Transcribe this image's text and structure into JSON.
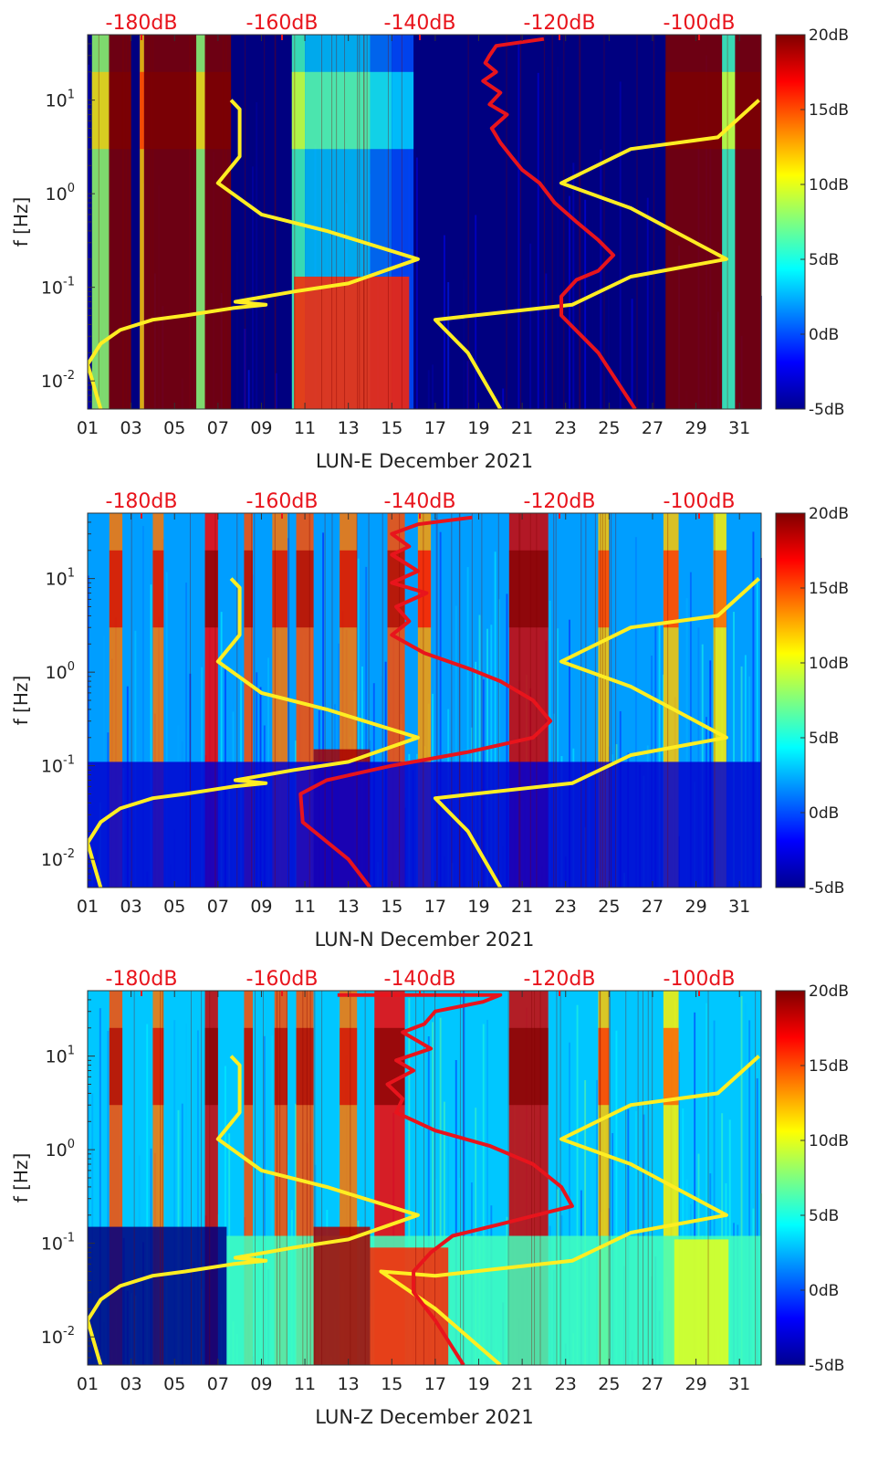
{
  "chart_data": [
    {
      "type": "heatmap",
      "title": "",
      "station": "LUN-E",
      "xlabel": "LUN-E December 2021",
      "ylabel": "f [Hz]",
      "x_ticks": [
        "01",
        "03",
        "05",
        "07",
        "09",
        "11",
        "13",
        "15",
        "17",
        "19",
        "21",
        "23",
        "25",
        "27",
        "29",
        "31"
      ],
      "y_ticks": [
        "10^-2",
        "10^-1",
        "10^0",
        "10^1"
      ],
      "xlim": [
        1,
        32
      ],
      "ylim_hz": [
        0.005,
        50
      ],
      "top_axis": {
        "labels": [
          "-180dB",
          "-160dB",
          "-140dB",
          "-120dB",
          "-100dB"
        ],
        "color": "#e8141c"
      },
      "colorbar": {
        "labels": [
          "20dB",
          "15dB",
          "10dB",
          "5dB",
          "0dB",
          "-5dB"
        ],
        "range_db": [
          -5,
          20
        ]
      },
      "background_level_db": -5,
      "bands": [
        {
          "day_start": 1.2,
          "day_end": 2.0,
          "level": 8
        },
        {
          "day_start": 2.0,
          "day_end": 3.0,
          "level": 20
        },
        {
          "day_start": 3.4,
          "day_end": 3.6,
          "level": 12
        },
        {
          "day_start": 3.6,
          "day_end": 6.0,
          "level": 20
        },
        {
          "day_start": 6.0,
          "day_end": 6.4,
          "level": 8
        },
        {
          "day_start": 6.4,
          "day_end": 7.6,
          "level": 20
        },
        {
          "day_start": 10.4,
          "day_end": 11.0,
          "level": 6
        },
        {
          "day_start": 11.0,
          "day_end": 14.0,
          "level": 3
        },
        {
          "day_start": 14.0,
          "day_end": 15.0,
          "level": 1
        },
        {
          "day_start": 15.0,
          "day_end": 16.0,
          "level": 0
        },
        {
          "day_start": 27.6,
          "day_end": 30.2,
          "level": 20
        },
        {
          "day_start": 30.2,
          "day_end": 30.8,
          "level": 6
        },
        {
          "day_start": 30.8,
          "day_end": 32.0,
          "level": 20
        }
      ],
      "low_freq_patches": [
        {
          "day_start": 10.5,
          "day_end": 15.8,
          "f_top": 0.13,
          "level": 16
        }
      ],
      "series": [
        {
          "name": "noise-model-yellow",
          "color": "#ffee22",
          "points": [
            [
              7.6,
              10
            ],
            [
              8.0,
              8
            ],
            [
              8.0,
              2.5
            ],
            [
              7.0,
              1.3
            ],
            [
              9.0,
              0.6
            ],
            [
              12.0,
              0.4
            ],
            [
              16.2,
              0.2
            ],
            [
              13.0,
              0.11
            ],
            [
              10.5,
              0.09
            ],
            [
              7.8,
              0.07
            ],
            [
              9.2,
              0.065
            ],
            [
              7.7,
              0.06
            ],
            [
              5.5,
              0.05
            ],
            [
              4.0,
              0.045
            ],
            [
              2.5,
              0.035
            ],
            [
              1.6,
              0.025
            ],
            [
              1.0,
              0.015
            ],
            [
              1.6,
              0.005
            ]
          ]
        },
        {
          "name": "noise-model-yellow-right",
          "color": "#ffee22",
          "points": [
            [
              31.9,
              10
            ],
            [
              30.0,
              4
            ],
            [
              26.0,
              3
            ],
            [
              22.8,
              1.3
            ],
            [
              26.0,
              0.7
            ],
            [
              30.4,
              0.2
            ],
            [
              26.0,
              0.13
            ],
            [
              23.3,
              0.065
            ],
            [
              17.0,
              0.045
            ],
            [
              18.5,
              0.02
            ],
            [
              20.0,
              0.005
            ]
          ]
        },
        {
          "name": "median-psd-red",
          "color": "#e8141c",
          "points": [
            [
              22.0,
              45
            ],
            [
              19.8,
              38
            ],
            [
              19.5,
              30
            ],
            [
              19.3,
              25
            ],
            [
              19.8,
              20
            ],
            [
              19.2,
              16
            ],
            [
              20.0,
              12
            ],
            [
              19.5,
              9
            ],
            [
              20.3,
              7
            ],
            [
              19.6,
              5
            ],
            [
              20.0,
              3.5
            ],
            [
              20.5,
              2.5
            ],
            [
              21.0,
              1.8
            ],
            [
              21.8,
              1.3
            ],
            [
              22.5,
              0.8
            ],
            [
              23.5,
              0.5
            ],
            [
              24.5,
              0.32
            ],
            [
              25.2,
              0.22
            ],
            [
              24.5,
              0.15
            ],
            [
              23.5,
              0.12
            ],
            [
              22.8,
              0.08
            ],
            [
              22.8,
              0.05
            ],
            [
              24.5,
              0.02
            ],
            [
              26.2,
              0.005
            ]
          ]
        }
      ]
    },
    {
      "type": "heatmap",
      "title": "",
      "station": "LUN-N",
      "xlabel": "LUN-N December 2021",
      "ylabel": "f [Hz]",
      "x_ticks": [
        "01",
        "03",
        "05",
        "07",
        "09",
        "11",
        "13",
        "15",
        "17",
        "19",
        "21",
        "23",
        "25",
        "27",
        "29",
        "31"
      ],
      "y_ticks": [
        "10^-2",
        "10^-1",
        "10^0",
        "10^1"
      ],
      "xlim": [
        1,
        32
      ],
      "ylim_hz": [
        0.005,
        50
      ],
      "top_axis": {
        "labels": [
          "-180dB",
          "-160dB",
          "-140dB",
          "-120dB",
          "-100dB"
        ],
        "color": "#e8141c"
      },
      "colorbar": {
        "labels": [
          "20dB",
          "15dB",
          "10dB",
          "5dB",
          "0dB",
          "-5dB"
        ],
        "range_db": [
          -5,
          20
        ]
      },
      "background_level_db": 2,
      "bands": [
        {
          "day_start": 2.0,
          "day_end": 2.6,
          "level": 14
        },
        {
          "day_start": 4.0,
          "day_end": 4.5,
          "level": 14
        },
        {
          "day_start": 6.4,
          "day_end": 7.0,
          "level": 17
        },
        {
          "day_start": 8.2,
          "day_end": 8.6,
          "level": 15
        },
        {
          "day_start": 9.5,
          "day_end": 10.2,
          "level": 14
        },
        {
          "day_start": 10.6,
          "day_end": 11.4,
          "level": 15
        },
        {
          "day_start": 12.6,
          "day_end": 13.4,
          "level": 14
        },
        {
          "day_start": 14.8,
          "day_end": 15.6,
          "level": 15
        },
        {
          "day_start": 16.2,
          "day_end": 16.8,
          "level": 13
        },
        {
          "day_start": 20.4,
          "day_end": 22.2,
          "level": 18
        },
        {
          "day_start": 24.5,
          "day_end": 25.0,
          "level": 12
        },
        {
          "day_start": 27.5,
          "day_end": 28.2,
          "level": 12
        },
        {
          "day_start": 29.8,
          "day_end": 30.4,
          "level": 11
        }
      ],
      "low_freq_patches": [
        {
          "day_start": 11.4,
          "day_end": 14.0,
          "f_top": 0.15,
          "level": 19
        },
        {
          "day_start": 1.0,
          "day_end": 32.0,
          "f_top": 0.11,
          "level": -3
        }
      ],
      "series": [
        {
          "name": "noise-model-yellow",
          "color": "#ffee22",
          "points": [
            [
              7.6,
              10
            ],
            [
              8.0,
              8
            ],
            [
              8.0,
              2.5
            ],
            [
              7.0,
              1.3
            ],
            [
              9.0,
              0.6
            ],
            [
              12.0,
              0.4
            ],
            [
              16.2,
              0.2
            ],
            [
              13.0,
              0.11
            ],
            [
              10.5,
              0.09
            ],
            [
              7.8,
              0.07
            ],
            [
              9.2,
              0.065
            ],
            [
              7.7,
              0.06
            ],
            [
              5.5,
              0.05
            ],
            [
              4.0,
              0.045
            ],
            [
              2.5,
              0.035
            ],
            [
              1.6,
              0.025
            ],
            [
              1.0,
              0.015
            ],
            [
              1.6,
              0.005
            ]
          ]
        },
        {
          "name": "noise-model-yellow-right",
          "color": "#ffee22",
          "points": [
            [
              31.9,
              10
            ],
            [
              30.0,
              4
            ],
            [
              26.0,
              3
            ],
            [
              22.8,
              1.3
            ],
            [
              26.0,
              0.7
            ],
            [
              30.4,
              0.2
            ],
            [
              26.0,
              0.13
            ],
            [
              23.3,
              0.065
            ],
            [
              17.0,
              0.045
            ],
            [
              18.5,
              0.02
            ],
            [
              20.0,
              0.005
            ]
          ]
        },
        {
          "name": "median-psd-red",
          "color": "#e8141c",
          "points": [
            [
              18.7,
              45
            ],
            [
              16.2,
              38
            ],
            [
              15.0,
              30
            ],
            [
              15.8,
              22
            ],
            [
              15.0,
              18
            ],
            [
              16.2,
              12
            ],
            [
              15.0,
              9
            ],
            [
              16.6,
              7
            ],
            [
              15.2,
              5
            ],
            [
              15.8,
              3.5
            ],
            [
              15.0,
              2.5
            ],
            [
              16.5,
              1.6
            ],
            [
              18.5,
              1.1
            ],
            [
              20.0,
              0.8
            ],
            [
              21.5,
              0.5
            ],
            [
              22.3,
              0.3
            ],
            [
              21.5,
              0.2
            ],
            [
              18.5,
              0.14
            ],
            [
              15.0,
              0.1
            ],
            [
              12.0,
              0.07
            ],
            [
              10.8,
              0.05
            ],
            [
              10.9,
              0.025
            ],
            [
              13.0,
              0.01
            ],
            [
              14.0,
              0.005
            ]
          ]
        }
      ]
    },
    {
      "type": "heatmap",
      "title": "",
      "station": "LUN-Z",
      "xlabel": "LUN-Z December 2021",
      "ylabel": "f [Hz]",
      "x_ticks": [
        "01",
        "03",
        "05",
        "07",
        "09",
        "11",
        "13",
        "15",
        "17",
        "19",
        "21",
        "23",
        "25",
        "27",
        "29",
        "31"
      ],
      "y_ticks": [
        "10^-2",
        "10^-1",
        "10^0",
        "10^1"
      ],
      "xlim": [
        1,
        32
      ],
      "ylim_hz": [
        0.005,
        50
      ],
      "top_axis": {
        "labels": [
          "-180dB",
          "-160dB",
          "-140dB",
          "-120dB",
          "-100dB"
        ],
        "color": "#e8141c"
      },
      "colorbar": {
        "labels": [
          "20dB",
          "15dB",
          "10dB",
          "5dB",
          "0dB",
          "-5dB"
        ],
        "range_db": [
          -5,
          20
        ]
      },
      "background_level_db": 3,
      "bands": [
        {
          "day_start": 2.0,
          "day_end": 2.6,
          "level": 15
        },
        {
          "day_start": 4.0,
          "day_end": 4.5,
          "level": 14
        },
        {
          "day_start": 6.4,
          "day_end": 7.0,
          "level": 18
        },
        {
          "day_start": 8.2,
          "day_end": 8.6,
          "level": 15
        },
        {
          "day_start": 9.6,
          "day_end": 10.2,
          "level": 15
        },
        {
          "day_start": 10.6,
          "day_end": 11.4,
          "level": 15
        },
        {
          "day_start": 12.6,
          "day_end": 13.4,
          "level": 14
        },
        {
          "day_start": 14.2,
          "day_end": 15.6,
          "level": 17
        },
        {
          "day_start": 20.4,
          "day_end": 22.2,
          "level": 18
        },
        {
          "day_start": 24.5,
          "day_end": 25.0,
          "level": 12
        },
        {
          "day_start": 27.5,
          "day_end": 28.2,
          "level": 11
        }
      ],
      "low_freq_patches": [
        {
          "day_start": 1.0,
          "day_end": 7.4,
          "f_top": 0.15,
          "level": -5
        },
        {
          "day_start": 7.4,
          "day_end": 32.0,
          "f_top": 0.12,
          "level": 6
        },
        {
          "day_start": 14.0,
          "day_end": 17.6,
          "f_top": 0.09,
          "level": 16
        },
        {
          "day_start": 11.4,
          "day_end": 14.0,
          "f_top": 0.15,
          "level": 19
        },
        {
          "day_start": 28.0,
          "day_end": 30.5,
          "f_top": 0.11,
          "level": 10
        }
      ],
      "series": [
        {
          "name": "noise-model-yellow",
          "color": "#ffee22",
          "points": [
            [
              7.6,
              10
            ],
            [
              8.0,
              8
            ],
            [
              8.0,
              2.5
            ],
            [
              7.0,
              1.3
            ],
            [
              9.0,
              0.6
            ],
            [
              12.0,
              0.4
            ],
            [
              16.2,
              0.2
            ],
            [
              13.0,
              0.11
            ],
            [
              10.5,
              0.09
            ],
            [
              7.8,
              0.07
            ],
            [
              9.2,
              0.065
            ],
            [
              7.7,
              0.06
            ],
            [
              5.5,
              0.05
            ],
            [
              4.0,
              0.045
            ],
            [
              2.5,
              0.035
            ],
            [
              1.6,
              0.025
            ],
            [
              1.0,
              0.015
            ],
            [
              1.6,
              0.005
            ]
          ]
        },
        {
          "name": "noise-model-yellow-right",
          "color": "#ffee22",
          "points": [
            [
              31.9,
              10
            ],
            [
              30.0,
              4
            ],
            [
              26.0,
              3
            ],
            [
              22.8,
              1.3
            ],
            [
              26.0,
              0.7
            ],
            [
              30.4,
              0.2
            ],
            [
              26.0,
              0.13
            ],
            [
              23.3,
              0.065
            ],
            [
              17.0,
              0.045
            ],
            [
              14.5,
              0.05
            ],
            [
              17.0,
              0.02
            ],
            [
              20.0,
              0.005
            ]
          ]
        },
        {
          "name": "median-psd-red",
          "color": "#e8141c",
          "points": [
            [
              12.5,
              45
            ],
            [
              20.0,
              45
            ],
            [
              19.2,
              38
            ],
            [
              17.0,
              30
            ],
            [
              16.5,
              22
            ],
            [
              15.5,
              18
            ],
            [
              16.8,
              12
            ],
            [
              15.2,
              9
            ],
            [
              16.0,
              7
            ],
            [
              14.8,
              5
            ],
            [
              15.5,
              3.5
            ],
            [
              15.2,
              2.5
            ],
            [
              17.0,
              1.6
            ],
            [
              19.5,
              1.1
            ],
            [
              21.5,
              0.7
            ],
            [
              22.8,
              0.4
            ],
            [
              23.3,
              0.25
            ],
            [
              20.0,
              0.16
            ],
            [
              17.8,
              0.12
            ],
            [
              16.8,
              0.08
            ],
            [
              16.0,
              0.05
            ],
            [
              16.0,
              0.03
            ],
            [
              17.0,
              0.015
            ],
            [
              18.3,
              0.005
            ]
          ]
        }
      ]
    }
  ]
}
